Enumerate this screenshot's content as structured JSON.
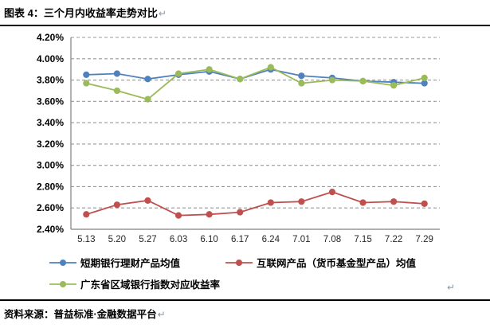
{
  "header": {
    "title": "图表 4：三个月内收益率走势对比"
  },
  "marks": {
    "line_break": "↵"
  },
  "footer": {
    "source": "资料来源：普益标准·金融数据平台"
  },
  "chart_data": {
    "type": "line",
    "title": "三个月内收益率走势对比",
    "categories": [
      "5.13",
      "5.20",
      "5.27",
      "6.03",
      "6.10",
      "6.17",
      "6.24",
      "7.01",
      "7.08",
      "7.15",
      "7.22",
      "7.29"
    ],
    "series": [
      {
        "name": "短期银行理财产品均值",
        "color": "#4F81BD",
        "values": [
          3.85,
          3.86,
          3.81,
          3.85,
          3.88,
          3.81,
          3.9,
          3.84,
          3.82,
          3.79,
          3.78,
          3.77
        ]
      },
      {
        "name": "互联网产品（货币基金型产品）均值",
        "color": "#C0504D",
        "values": [
          2.54,
          2.63,
          2.67,
          2.53,
          2.54,
          2.56,
          2.65,
          2.66,
          2.75,
          2.65,
          2.66,
          2.64
        ]
      },
      {
        "name": "广东省区域银行指数对应收益率",
        "color": "#9BBB59",
        "values": [
          3.77,
          3.7,
          3.62,
          3.86,
          3.9,
          3.81,
          3.92,
          3.77,
          3.8,
          3.79,
          3.75,
          3.82
        ]
      }
    ],
    "ylim": [
      2.4,
      4.2
    ],
    "ytick_step": 0.2,
    "ytick_format": "0.00%",
    "xlabel": "",
    "ylabel": "",
    "grid": "horizontal-dashed",
    "legend_position": "bottom",
    "axis_color": "#808080",
    "grid_color": "#999999"
  }
}
